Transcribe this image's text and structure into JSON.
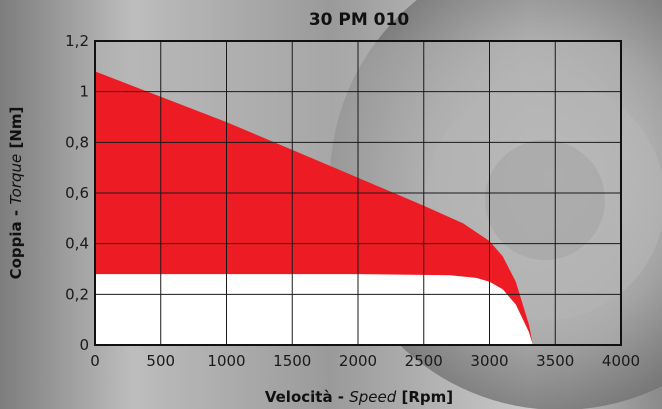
{
  "chart_data": {
    "type": "area",
    "title": "30 PM 010",
    "xlabel": {
      "main": "Velocità",
      "sep": " - ",
      "italic": "Speed",
      "unit": " [Rpm]"
    },
    "ylabel": {
      "main": "Coppia",
      "sep": " - ",
      "italic": "Torque",
      "unit": " [Nm]"
    },
    "xlim": [
      0,
      4000
    ],
    "ylim": [
      0,
      1.2
    ],
    "x_ticks": [
      0,
      500,
      1000,
      1500,
      2000,
      2500,
      3000,
      3500,
      4000
    ],
    "x_tick_labels": [
      "0",
      "500",
      "1000",
      "1500",
      "2000",
      "2500",
      "3000",
      "3500",
      "4000"
    ],
    "y_ticks": [
      0,
      0.2,
      0.4,
      0.6,
      0.8,
      1.0,
      1.2
    ],
    "y_tick_labels": [
      "0",
      "0,2",
      "0,4",
      "0,6",
      "0,8",
      "1",
      "1,2"
    ],
    "grid": true,
    "series": [
      {
        "color": "#ed1c24",
        "x": [
          0,
          500,
          1000,
          1500,
          2000,
          2500,
          2800,
          3000,
          3100,
          3200,
          3300,
          3330
        ],
        "y": [
          1.08,
          0.98,
          0.88,
          0.77,
          0.66,
          0.55,
          0.48,
          0.41,
          0.35,
          0.25,
          0.08,
          0.0
        ]
      },
      {
        "color": "#ffffff",
        "x": [
          0,
          1000,
          2000,
          2700,
          2900,
          3000,
          3100,
          3200,
          3300,
          3330
        ],
        "y": [
          0.28,
          0.28,
          0.28,
          0.275,
          0.265,
          0.25,
          0.22,
          0.16,
          0.05,
          0.0
        ]
      }
    ]
  }
}
